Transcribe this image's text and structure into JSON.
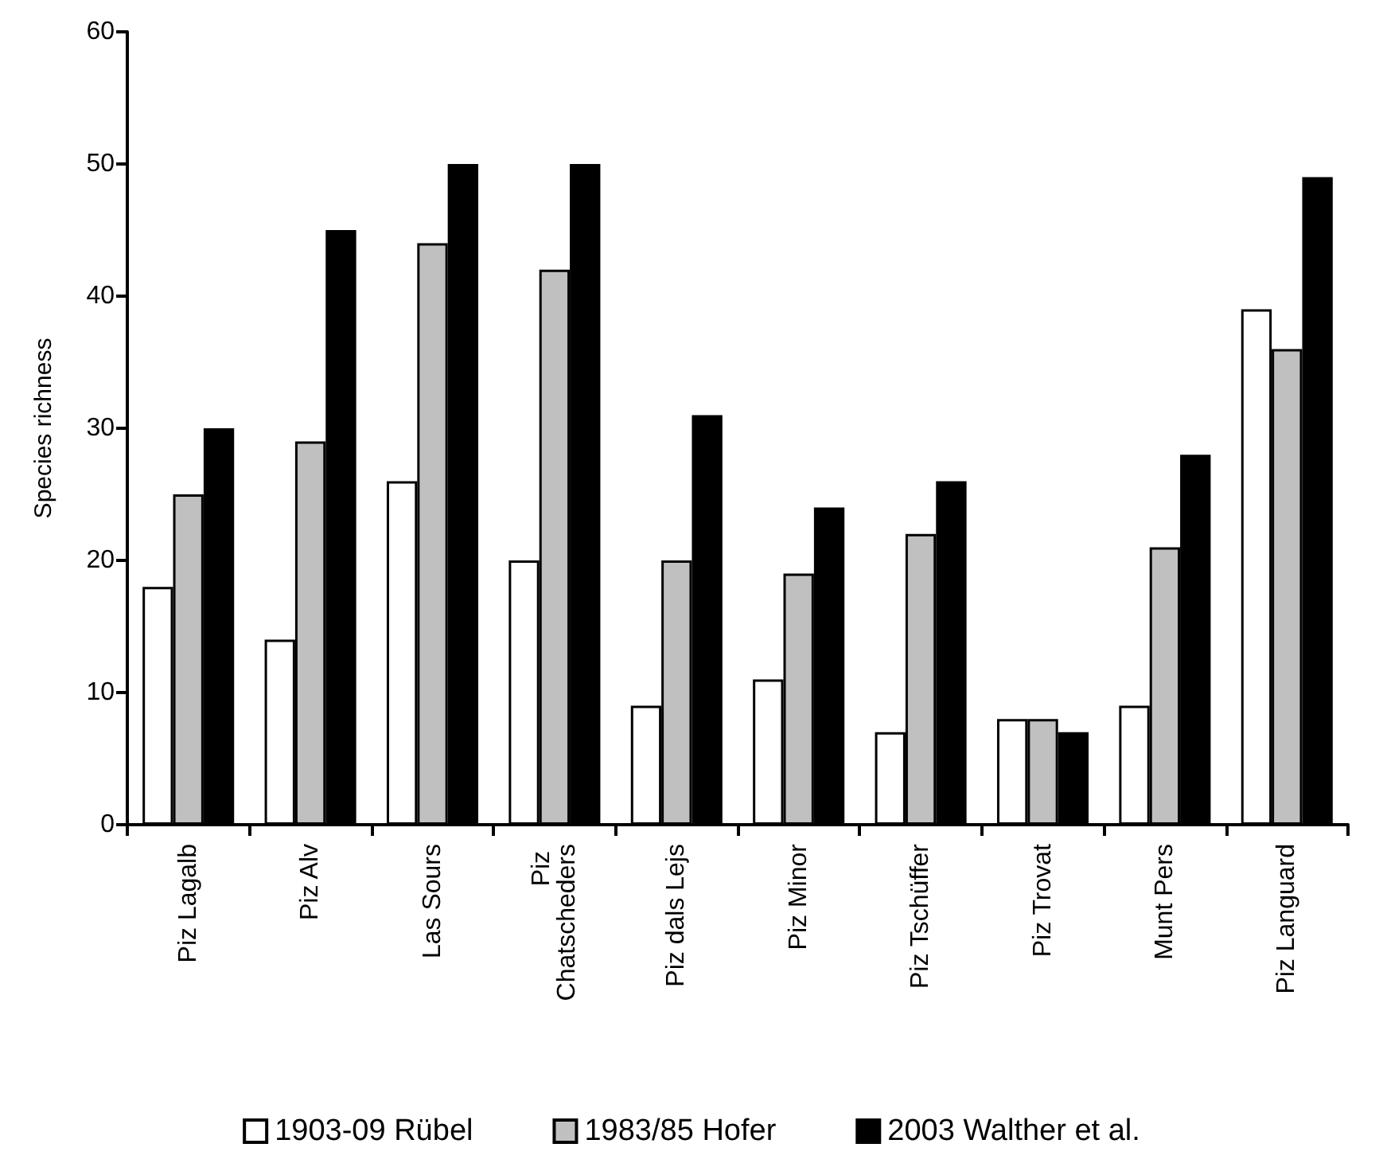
{
  "chart_data": {
    "type": "bar",
    "ylabel": "Species richness",
    "categories": [
      "Piz Lagalb",
      "Piz Alv",
      "Las Sours",
      "Piz Chatscheders",
      "Piz dals Lejs",
      "Piz Minor",
      "Piz Tschüffer",
      "Piz Trovat",
      "Munt Pers",
      "Piz Languard"
    ],
    "series": [
      {
        "name": "1903-09 Rübel",
        "color": "#ffffff",
        "values": [
          18,
          14,
          26,
          20,
          9,
          11,
          7,
          8,
          9,
          39
        ]
      },
      {
        "name": "1983/85 Hofer",
        "color": "#c0c0c0",
        "values": [
          25,
          29,
          44,
          42,
          20,
          19,
          22,
          8,
          21,
          36
        ]
      },
      {
        "name": "2003 Walther et al.",
        "color": "#000000",
        "values": [
          30,
          45,
          50,
          50,
          31,
          24,
          26,
          7,
          28,
          49
        ]
      }
    ],
    "ylim": [
      0,
      60
    ],
    "yticks": [
      0,
      10,
      20,
      30,
      40,
      50,
      60
    ],
    "grid": false,
    "legend": "bottom"
  }
}
